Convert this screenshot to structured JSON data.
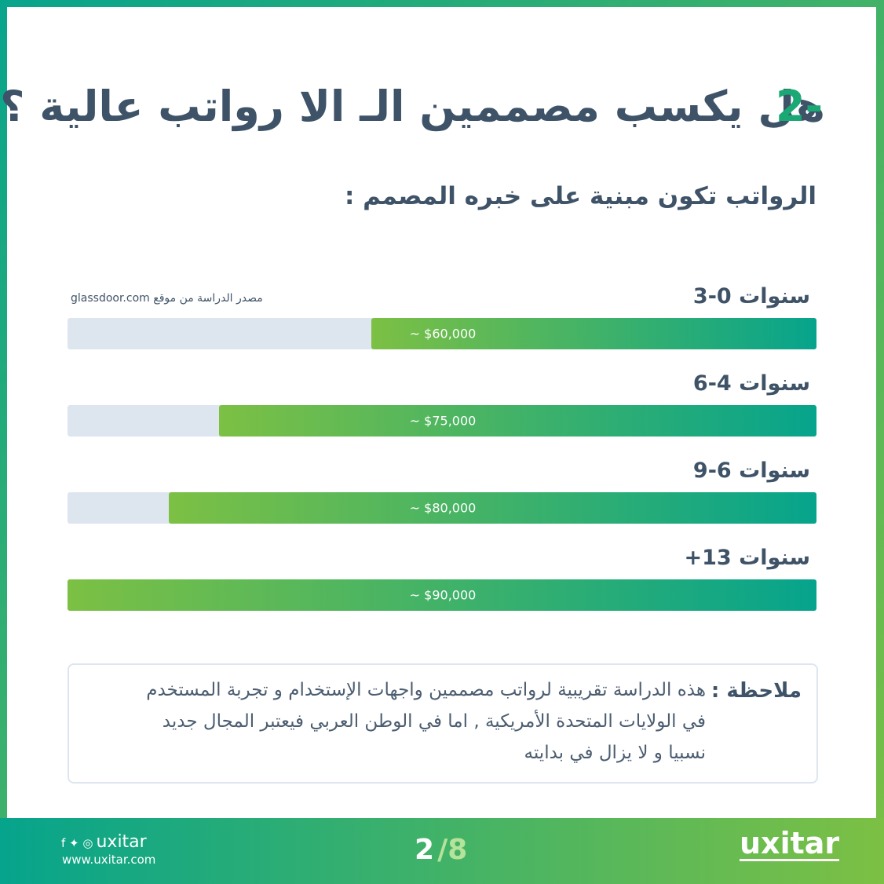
{
  "header": {
    "number": "2-",
    "title": "هل يكسب مصممين الـ الا رواتب عالية ؟"
  },
  "subtitle": "الرواتب تكون مبنية على خبره المصمم :",
  "source": "مصدر الدراسة من موقع glassdoor.com",
  "chart_data": {
    "type": "bar",
    "orientation": "horizontal",
    "categories": [
      "3-0 سنوات",
      "6-4 سنوات",
      "9-6 سنوات",
      "+13 سنوات"
    ],
    "values": [
      60000,
      75000,
      80000,
      90000
    ],
    "value_labels": [
      "~ $60,000",
      "~ $75,000",
      "~ $80,000",
      "~ $90,000"
    ],
    "xlim": [
      16000,
      90000
    ],
    "colors": [
      "#7cc044",
      "#06a48c"
    ],
    "track_color": "#dde6ef"
  },
  "note": {
    "label": "ملاحظة :",
    "lines": [
      "هذه الدراسة تقريبية لرواتب مصممين واجهات الإستخدام و تجربة المستخدم",
      "في الولايات المتحدة الأمريكية , اما في الوطن العربي فيعتبر المجال جديد",
      "نسبيا و لا يزال في بدايته"
    ]
  },
  "footer": {
    "handle": "uxitar",
    "url": "www.uxitar.com",
    "page": "2",
    "total": "/8",
    "logo": "uxitar"
  }
}
